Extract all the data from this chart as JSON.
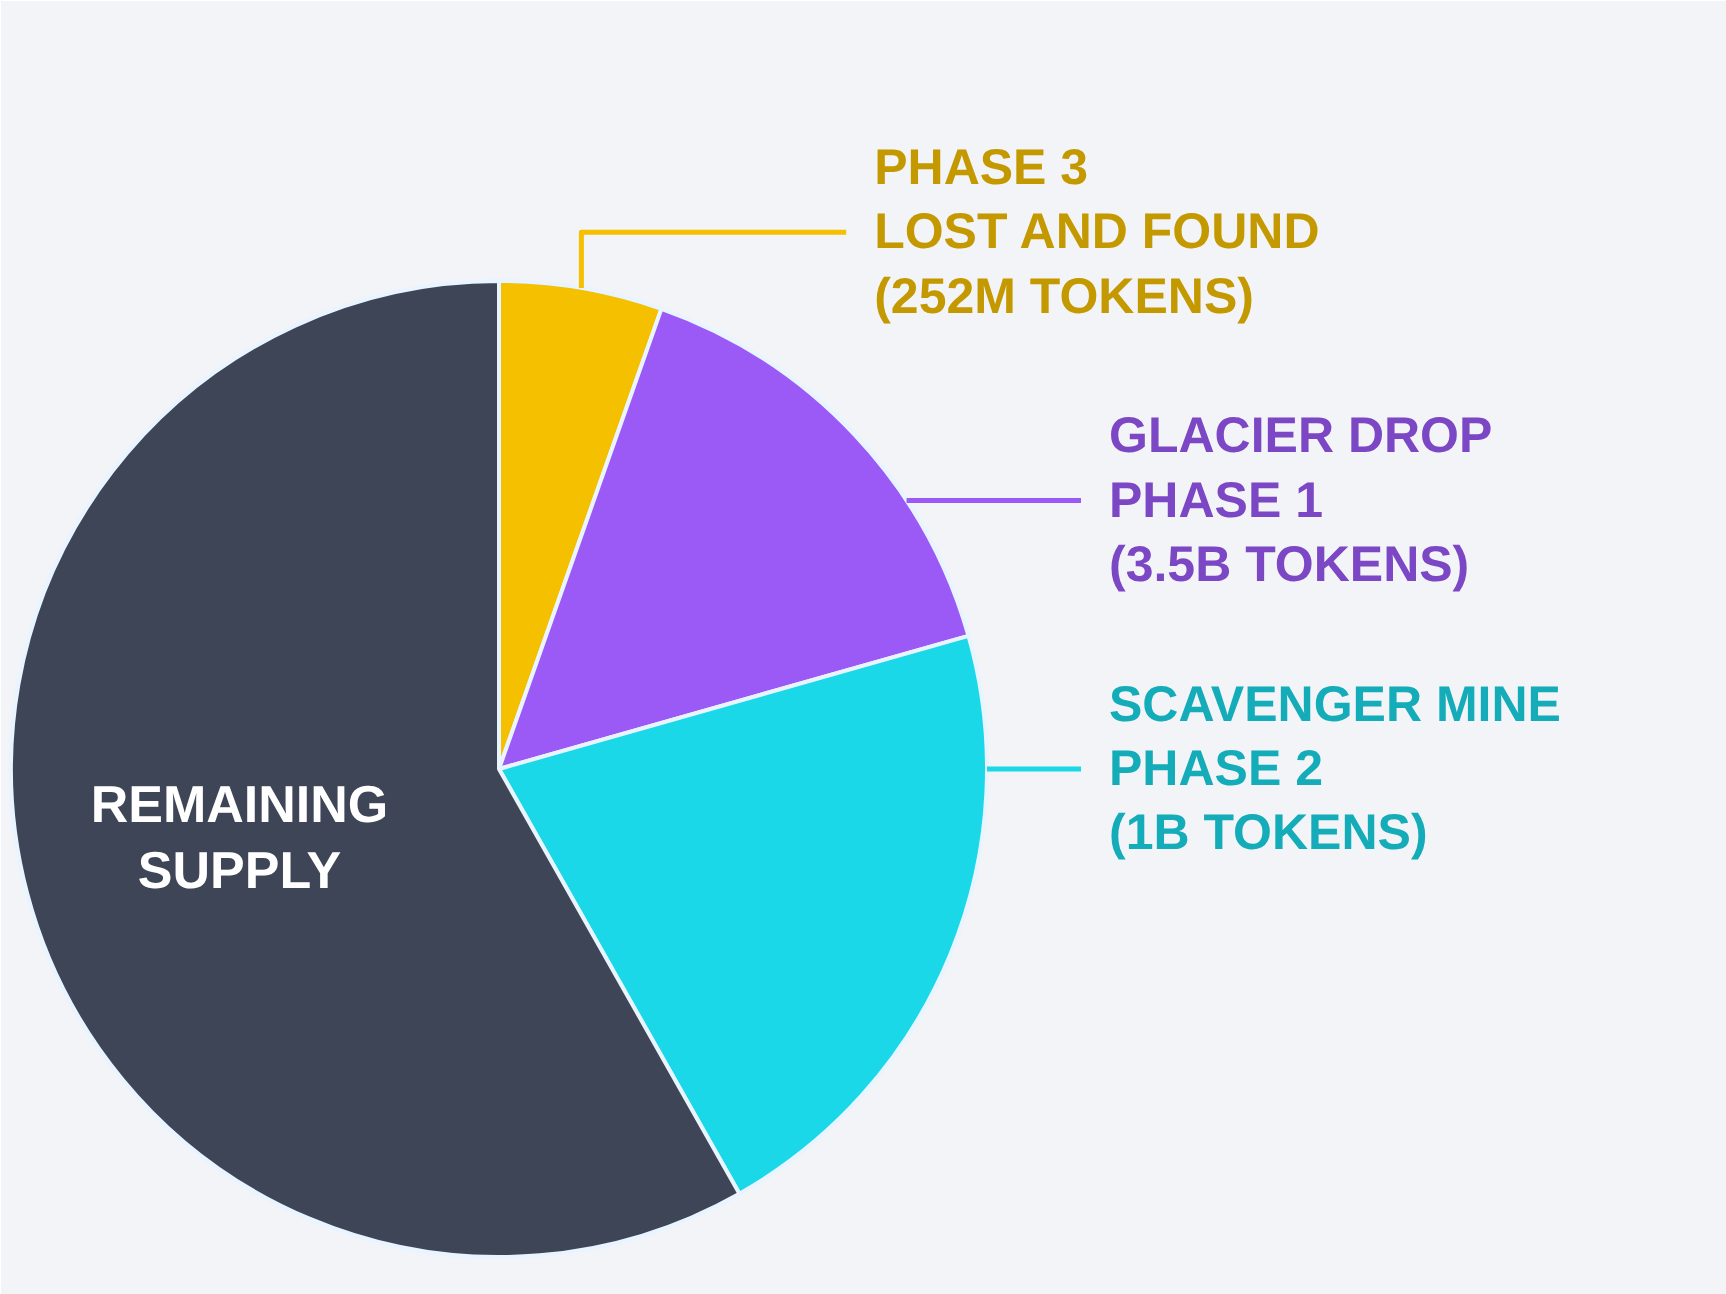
{
  "chart_data": {
    "type": "pie",
    "categories": [
      "PHASE 3\nLOST AND FOUND\n(252M TOKENS)",
      "GLACIER DROP\nPHASE 1\n(3.5B TOKENS)",
      "SCAVENGER MINE\nPHASE 2\n(1B TOKENS)",
      "REMAINING\nSUPPLY"
    ],
    "values": [
      5.4,
      15.2,
      21.2,
      58.2
    ],
    "colors": [
      "#f5c000",
      "#9b59f5",
      "#1ad8e8",
      "#3d4556"
    ]
  }
}
